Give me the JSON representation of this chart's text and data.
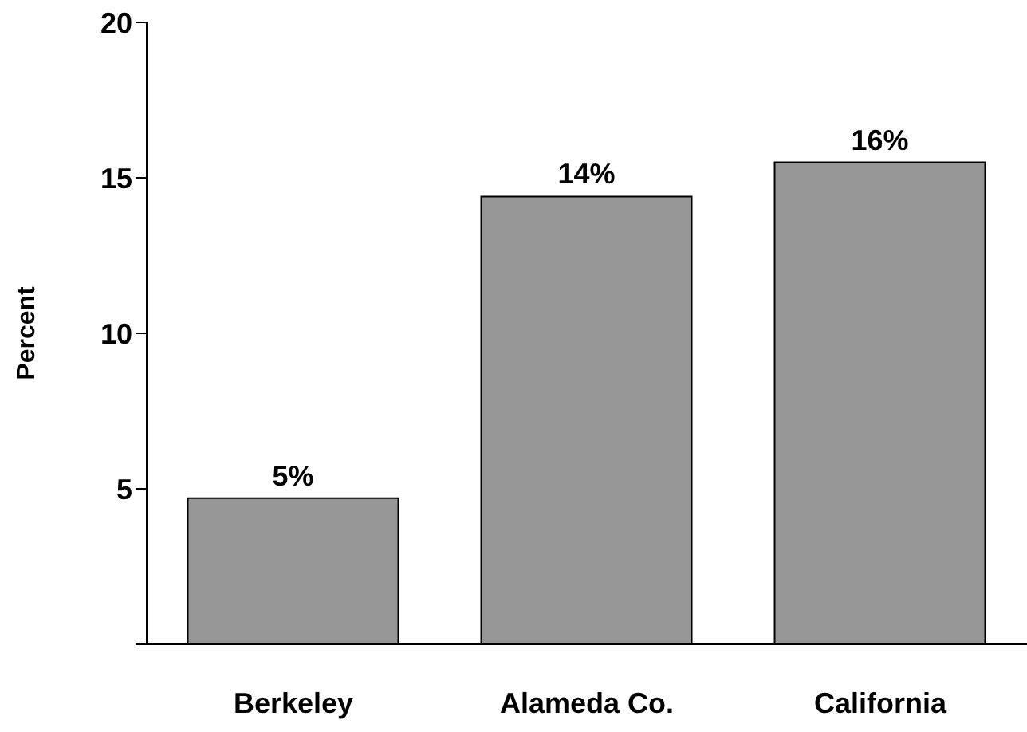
{
  "chart_data": {
    "type": "bar",
    "ylabel": "Percent",
    "categories": [
      "Berkeley",
      "Alameda Co.",
      "California"
    ],
    "values": [
      4.7,
      14.4,
      15.5
    ],
    "value_labels": [
      "5%",
      "14%",
      "16%"
    ],
    "color": "#969696",
    "ylim": [
      0,
      20
    ],
    "yticks": [
      {
        "value": 0,
        "label": null
      },
      5,
      10,
      15,
      20
    ],
    "grid": false
  }
}
